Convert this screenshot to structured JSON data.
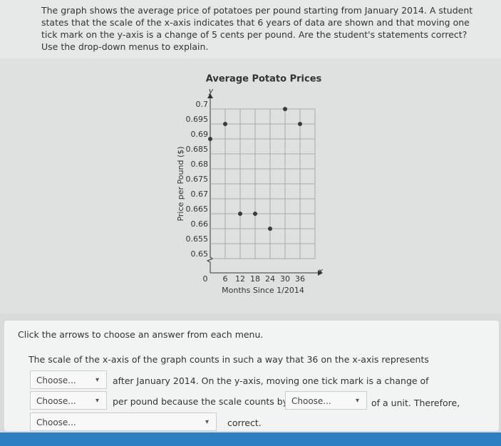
{
  "question": {
    "text": "The graph shows the average price of potatoes per pound starting from January 2014. A student states that the scale of the x-axis indicates that 6 years of data are shown and that moving one tick mark on the y-axis is a change of 5 cents per pound. Are the student's statements correct? Use the drop-down menus to explain."
  },
  "chart_data": {
    "type": "scatter",
    "title": "Average Potato Prices",
    "x_label": "Months Since 1/2014",
    "y_label": "Price per Pound ($)",
    "x_axis_letter": "x",
    "y_axis_letter": "y",
    "origin_label": "0",
    "series": [
      {
        "name": "Price",
        "color": "#3a3a3a",
        "x": [
          0,
          6,
          12,
          18,
          24,
          30,
          36
        ],
        "values": [
          0.69,
          0.695,
          0.665,
          0.665,
          0.66,
          0.7,
          0.695
        ]
      }
    ],
    "xlim": [
      0,
      42
    ],
    "xticks": [
      6,
      12,
      18,
      24,
      30,
      36
    ],
    "ylim": [
      0.65,
      0.7
    ],
    "yticks": [
      0.65,
      0.655,
      0.66,
      0.665,
      0.67,
      0.675,
      0.68,
      0.685,
      0.69,
      0.695,
      0.7
    ],
    "grid": true
  },
  "answer_panel": {
    "instruction": "Click the arrows to choose an answer from each menu.",
    "sentence": [
      "The scale of the x-axis of the graph counts in such a way that 36 on the x-axis represents",
      "after January 2014. On the y-axis, moving one tick mark is a change of",
      "per pound because the scale counts by",
      "of a unit. Therefore,",
      "correct."
    ],
    "menus": [
      "Choose...",
      "Choose...",
      "Choose...",
      "Choose..."
    ]
  }
}
